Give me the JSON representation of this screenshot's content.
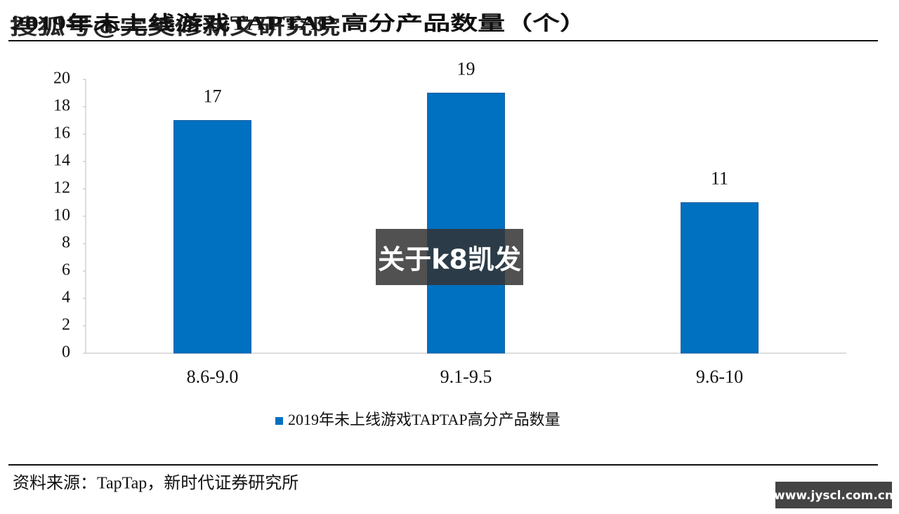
{
  "chart_data": {
    "type": "bar",
    "title": "2019年未上线游戏TAPTAP 高分产品数量（个）",
    "title_watermark": "搜狐号@完美修新文研究院",
    "categories": [
      "8.6-9.0",
      "9.1-9.5",
      "9.6-10"
    ],
    "series": [
      {
        "name": "2019年未上线游戏TAPTAP高分产品数量",
        "color": "#0070c0",
        "values": [
          17,
          19,
          11
        ]
      }
    ],
    "ylim": [
      0,
      20
    ],
    "yticks": [
      0,
      2,
      4,
      6,
      8,
      10,
      12,
      14,
      16,
      18,
      20
    ],
    "grid": false,
    "legend": "bottom",
    "source": "资料来源：TapTap，新时代证券研究所",
    "center_watermark": "关于k8凯发",
    "corner_watermark": "www.jyscl.com.cn"
  }
}
